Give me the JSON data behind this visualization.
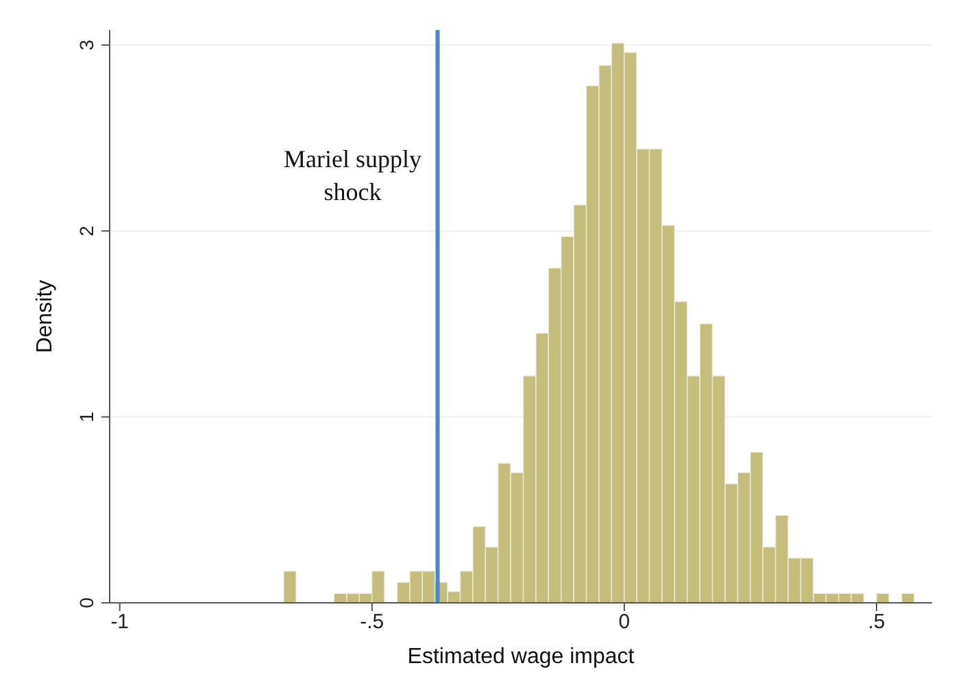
{
  "chart_data": {
    "type": "histogram",
    "xlabel": "Estimated wage impact",
    "ylabel": "Density",
    "color": "#c5bd7c",
    "bins": [
      -0.675,
      -0.65,
      -0.625,
      -0.6,
      -0.575,
      -0.55,
      -0.525,
      -0.5,
      -0.475,
      -0.45,
      -0.425,
      -0.4,
      -0.375,
      -0.35,
      -0.325,
      -0.3,
      -0.275,
      -0.25,
      -0.225,
      -0.2,
      -0.175,
      -0.15,
      -0.125,
      -0.1,
      -0.075,
      -0.05,
      -0.025,
      0,
      0.025,
      0.05,
      0.075,
      0.1,
      0.125,
      0.15,
      0.175,
      0.2,
      0.225,
      0.25,
      0.275,
      0.3,
      0.325,
      0.35,
      0.375,
      0.4,
      0.425,
      0.45,
      0.475,
      0.5,
      0.525,
      0.55,
      0.575
    ],
    "values": [
      0.17,
      0,
      0,
      0,
      0.05,
      0.05,
      0.05,
      0.17,
      0,
      0.11,
      0.17,
      0.17,
      0.11,
      0.06,
      0.17,
      0.41,
      0.3,
      0.75,
      0.7,
      1.22,
      1.45,
      1.8,
      1.97,
      2.14,
      2.78,
      2.89,
      3.01,
      2.96,
      2.44,
      2.44,
      2.03,
      1.62,
      1.22,
      1.5,
      1.22,
      0.64,
      0.7,
      0.81,
      0.3,
      0.47,
      0.24,
      0.24,
      0.05,
      0.05,
      0.05,
      0.05,
      0,
      0.05,
      0,
      0.05
    ],
    "xlim": [
      -1.02,
      0.61
    ],
    "xticks": [
      -1,
      {
        "value": -0.5,
        "label": "-.5"
      },
      0,
      {
        "value": 0.5,
        "label": ".5"
      }
    ],
    "ylim": [
      0,
      3.08
    ],
    "yticks": [
      0,
      1,
      2,
      3
    ],
    "grid": "y",
    "ref_lines": [
      {
        "axis": "x",
        "value": -0.37,
        "label": "Mariel supply\nshock",
        "color": "#4a86c8"
      }
    ]
  }
}
